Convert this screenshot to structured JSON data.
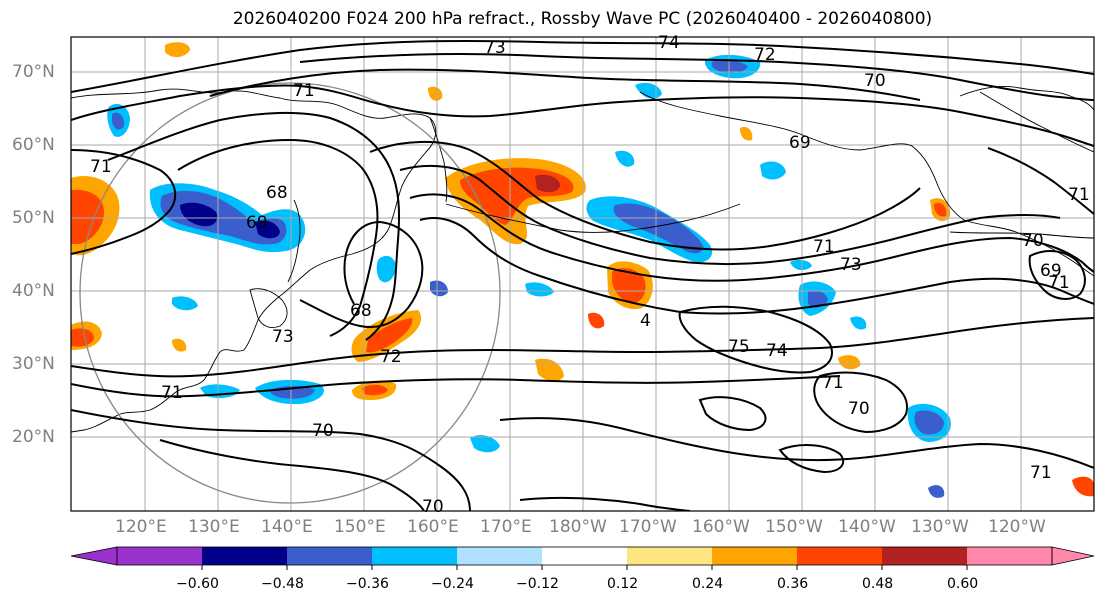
{
  "title": "2026040200 F024 200 hPa refract., Rossby Wave PC (2026040400 - 2026040800)",
  "latitude_labels": [
    "70°N",
    "60°N",
    "50°N",
    "40°N",
    "30°N",
    "20°N"
  ],
  "longitude_labels": [
    "120°E",
    "130°E",
    "140°E",
    "150°E",
    "160°E",
    "170°E",
    "180°W",
    "170°W",
    "160°W",
    "150°W",
    "140°W",
    "130°W",
    "120°W"
  ],
  "contour_labels": [
    "73",
    "74",
    "72",
    "71",
    "70",
    "71",
    "69",
    "71",
    "68",
    "69",
    "73",
    "72",
    "71",
    "70",
    "70",
    "68",
    "71",
    "73",
    "4",
    "75",
    "74",
    "71",
    "70",
    "70",
    "69",
    "71",
    "71"
  ],
  "colorbar": {
    "tick_labels": [
      "−0.60",
      "−0.48",
      "−0.36",
      "−0.24",
      "−0.12",
      "0.12",
      "0.24",
      "0.36",
      "0.48",
      "0.60"
    ],
    "colors": [
      "#9932cc",
      "#00008b",
      "#3a5fcd",
      "#00bfff",
      "#b0e2ff",
      "#ffffff",
      "#ffe680",
      "#ffa500",
      "#ff4500",
      "#b22222",
      "#ff88aa"
    ]
  }
}
